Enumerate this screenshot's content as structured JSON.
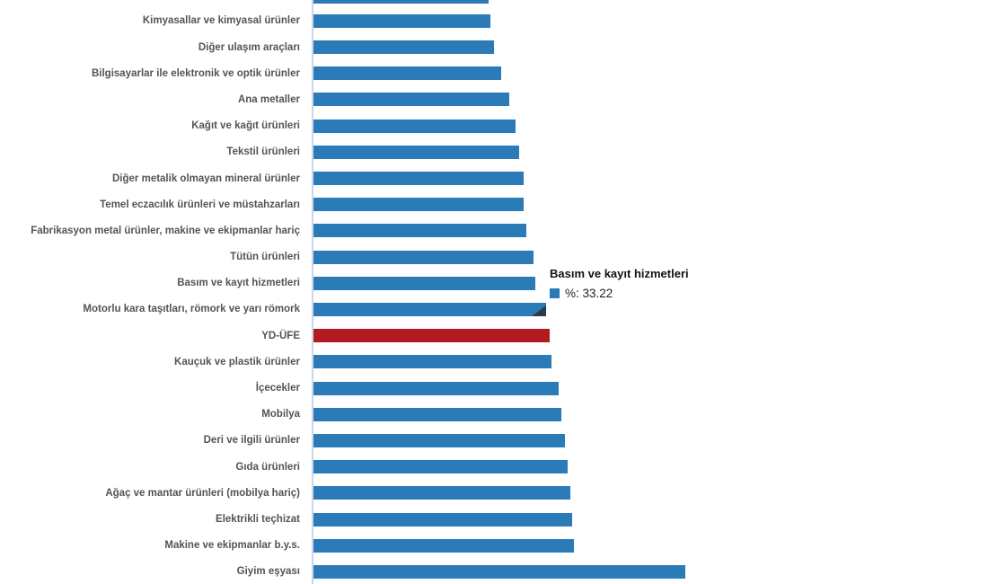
{
  "chart_data": {
    "type": "bar",
    "orientation": "horizontal",
    "unit": "%",
    "title": "",
    "xlabel": "",
    "ylabel": "",
    "grid": false,
    "legend_position": "none",
    "note": "chart is cropped at top and bottom edges; one unlabeled bar is partially visible at the top",
    "categories": [
      "Kimyasallar ve kimyasal ürünler",
      "Diğer ulaşım araçları",
      "Bilgisayarlar ile elektronik ve optik ürünler",
      "Ana metaller",
      "Kağıt ve kağıt ürünleri",
      "Tekstil ürünleri",
      "Diğer metalik olmayan mineral ürünler",
      "Temel eczacılık ürünleri ve müstahzarları",
      "Fabrikasyon metal ürünler, makine ve ekipmanlar hariç",
      "Tütün ürünleri",
      "Basım ve kayıt hizmetleri",
      "Motorlu kara taşıtları, römork ve yarı römork",
      "YD-ÜFE",
      "Kauçuk ve plastik ürünler",
      "İçecekler",
      "Mobilya",
      "Deri ve ilgili ürünler",
      "Gıda ürünleri",
      "Ağaç ve mantar ürünleri (mobilya hariç)",
      "Elektrikli teçhizat",
      "Makine ve ekipmanlar b.y.s.",
      "Giyim eşyası"
    ],
    "values": [
      26.5,
      27.0,
      28.1,
      29.3,
      30.2,
      30.8,
      31.5,
      31.5,
      31.9,
      32.9,
      33.22,
      34.8,
      35.3,
      35.6,
      36.7,
      37.1,
      37.6,
      38.0,
      38.4,
      38.7,
      39.0,
      55.6
    ],
    "highlight_category": "YD-ÜFE",
    "top_partial_bar": {
      "value": 26.2,
      "cut_off": true
    },
    "colors": {
      "bar": "#2b7bb9",
      "highlight_bar": "#b11a21",
      "axis_line": "#ccd6eb",
      "category_label": "#545454"
    }
  },
  "tooltip": {
    "title": "Basım ve kayıt hizmetleri",
    "value_label": "%: 33.22",
    "marker_color": "#2b7bb9"
  }
}
